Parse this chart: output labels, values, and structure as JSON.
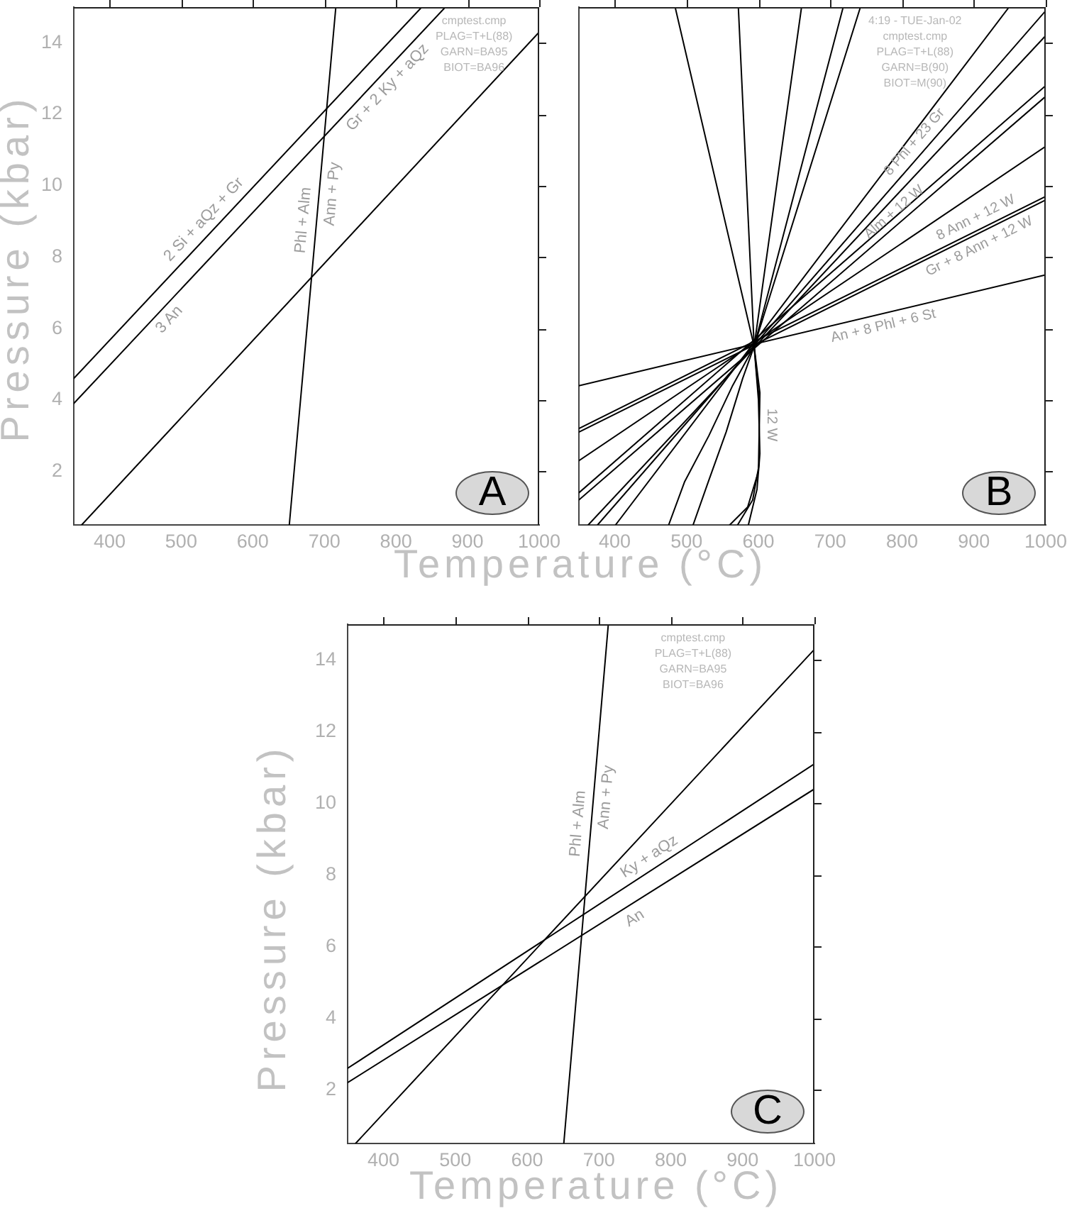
{
  "chart_data": [
    {
      "type": "line",
      "title": "A",
      "xlabel": "Temperature (°C)",
      "ylabel": "Pressure (kbar)",
      "xlim": [
        350,
        1000
      ],
      "ylim": [
        0.5,
        15
      ],
      "xticks": [
        400,
        500,
        600,
        700,
        800,
        900,
        1000
      ],
      "yticks": [
        2,
        4,
        6,
        8,
        10,
        12,
        14
      ],
      "series": [
        {
          "color": "#000000",
          "x": [
            651,
            716
          ],
          "values": [
            0.5,
            15
          ]
        },
        {
          "color": "#000000",
          "x": [
            350,
            836
          ],
          "values": [
            4.6,
            15
          ]
        },
        {
          "color": "#000000",
          "x": [
            350,
            869
          ],
          "values": [
            3.9,
            15
          ]
        },
        {
          "color": "#000000",
          "x": [
            361,
            1000
          ],
          "values": [
            0.5,
            14.3
          ]
        }
      ],
      "annotations": [
        "cmptest.cmp",
        "PLAG=T+L(88)",
        "GARN=BA95",
        "BIOT=BA96",
        {
          "text": "2 Si + aQz + Gr",
          "x": 545,
          "y": 8.8
        },
        {
          "text": "Gr + 2 Ky + aQz",
          "x": 775,
          "y": 13.0
        },
        {
          "text": "3 An",
          "x": 470,
          "y": 6.5
        },
        {
          "text": "Phl + Alm",
          "x": 689,
          "y": 9.0
        },
        {
          "text": "Ann + Py",
          "x": 693,
          "y": 9.8
        }
      ]
    },
    {
      "type": "line",
      "title": "B",
      "tick_labels": "x",
      "xlim": [
        350,
        1000
      ],
      "ylim": [
        0.5,
        15
      ],
      "xticks": [
        400,
        500,
        600,
        700,
        800,
        900,
        1000
      ],
      "yticks": [
        2,
        4,
        6,
        8,
        10,
        12,
        14
      ],
      "series": [
        {
          "color": "#000000",
          "x": [
            350,
            1000
          ],
          "values": [
            4.4,
            7.5
          ]
        },
        {
          "color": "#000000",
          "x": [
            350,
            1000
          ],
          "values": [
            3.2,
            9.7
          ]
        },
        {
          "color": "#000000",
          "x": [
            350,
            1000
          ],
          "values": [
            3.1,
            9.6
          ]
        },
        {
          "color": "#000000",
          "x": [
            350,
            1000
          ],
          "values": [
            2.3,
            11.1
          ]
        },
        {
          "color": "#000000",
          "x": [
            350,
            1000
          ],
          "values": [
            1.4,
            12.8
          ]
        },
        {
          "color": "#000000",
          "x": [
            350,
            1000
          ],
          "values": [
            1.2,
            12.5
          ]
        },
        {
          "color": "#000000",
          "x": [
            363,
            1000
          ],
          "values": [
            0.5,
            14.2
          ]
        },
        {
          "color": "#000000",
          "x": [
            376,
            1000
          ],
          "values": [
            0.5,
            14.9
          ]
        },
        {
          "color": "#000000",
          "x": [
            401,
            949
          ],
          "values": [
            0.5,
            15
          ]
        },
        {
          "color": "#000000",
          "x": [
            475,
            497,
            531,
            564,
            594,
            742
          ],
          "values": [
            0.5,
            1.7,
            3.0,
            4.4,
            5.5,
            15
          ]
        },
        {
          "color": "#000000",
          "x": [
            509,
            530,
            555,
            578,
            594,
            718
          ],
          "values": [
            0.5,
            1.7,
            3.1,
            4.6,
            5.5,
            15
          ]
        },
        {
          "color": "#000000",
          "x": [
            660,
            594,
            600,
            602,
            598,
            586
          ],
          "values": [
            15,
            5.5,
            4.0,
            2.5,
            1.5,
            0.5
          ]
        },
        {
          "color": "#000000",
          "x": [
            572,
            594,
            601,
            601,
            592,
            571
          ],
          "values": [
            15,
            5.5,
            4.0,
            2.2,
            1.2,
            0.5
          ]
        },
        {
          "color": "#000000",
          "x": [
            484,
            594,
            602,
            600,
            585,
            560
          ],
          "values": [
            15,
            5.5,
            4.2,
            2.0,
            1.0,
            0.5
          ]
        }
      ],
      "annotations": [
        "4:19 - TUE-Jan-02",
        "cmptest.cmp",
        "PLAG=T+L(88)",
        "GARN=B(90)",
        "BIOT=M(90)",
        {
          "text": "An + 8 Phl + 6 St",
          "x": 770,
          "y": 6.4
        },
        {
          "text": "Gr + 8 Ann + 12 W",
          "x": 900,
          "y": 8.6
        },
        {
          "text": "8 Ann + 12 W",
          "x": 910,
          "y": 8.8
        },
        {
          "text": "Alm + 12 W",
          "x": 800,
          "y": 9.0
        },
        {
          "text": "8 Phl + 23 Gr",
          "x": 830,
          "y": 11.0
        },
        {
          "text": "12 W",
          "x": 601,
          "y": 3.3
        }
      ]
    },
    {
      "type": "line",
      "title": "C",
      "xlabel": "Temperature (°C)",
      "ylabel": "Pressure (kbar)",
      "xlim": [
        350,
        1000
      ],
      "ylim": [
        0.5,
        15
      ],
      "xticks": [
        400,
        500,
        600,
        700,
        800,
        900,
        1000
      ],
      "yticks": [
        2,
        4,
        6,
        8,
        10,
        12,
        14
      ],
      "series": [
        {
          "color": "#000000",
          "x": [
            651,
            713
          ],
          "values": [
            0.5,
            15
          ]
        },
        {
          "color": "#000000",
          "x": [
            361,
            1000
          ],
          "values": [
            0.5,
            14.3
          ]
        },
        {
          "color": "#000000",
          "x": [
            350,
            1000
          ],
          "values": [
            2.6,
            11.1
          ]
        },
        {
          "color": "#000000",
          "x": [
            350,
            1000
          ],
          "values": [
            2.2,
            10.4
          ]
        }
      ],
      "annotations": [
        "cmptest.cmp",
        "PLAG=T+L(88)",
        "GARN=BA95",
        "BIOT=BA96",
        {
          "text": "Phl + Alm",
          "x": 689,
          "y": 9.4
        },
        {
          "text": "Ann + Py",
          "x": 692,
          "y": 10.2
        },
        {
          "text": "Ky + aQz",
          "x": 780,
          "y": 8.2
        },
        {
          "text": "An",
          "x": 740,
          "y": 7.1
        }
      ]
    }
  ]
}
